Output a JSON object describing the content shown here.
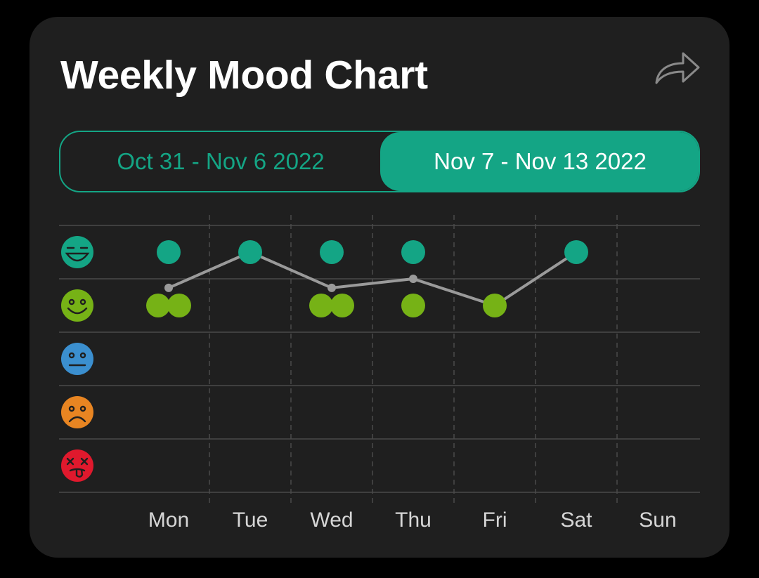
{
  "card": {
    "title": "Weekly Mood Chart"
  },
  "share_icon": "share-arrow-icon",
  "week_toggle": {
    "options": [
      "Oct 31 - Nov 6 2022",
      "Nov 7 - Nov 13 2022"
    ],
    "selected": "Nov 7 - Nov 13 2022"
  },
  "colors": {
    "background": "#000000",
    "card": "#1f1f1f",
    "accent": "#14a585",
    "mood_1": "#14a585",
    "mood_2": "#76b216",
    "mood_3": "#3b8fcf",
    "mood_4": "#e88522",
    "mood_5": "#e0192d",
    "average_line": "#9a9a9a",
    "grid": "#4a4a4a"
  },
  "chart_data": {
    "type": "scatter",
    "categories": [
      "Mon",
      "Tue",
      "Wed",
      "Thu",
      "Fri",
      "Sat",
      "Sun"
    ],
    "y_levels": [
      {
        "level": 5,
        "icon": "grinning-face-icon",
        "color": "#14a585"
      },
      {
        "level": 4,
        "icon": "smiling-face-icon",
        "color": "#76b216"
      },
      {
        "level": 3,
        "icon": "neutral-face-icon",
        "color": "#3b8fcf"
      },
      {
        "level": 2,
        "icon": "frowning-face-icon",
        "color": "#e88522"
      },
      {
        "level": 1,
        "icon": "dizzy-face-icon",
        "color": "#e0192d"
      }
    ],
    "ylim": [
      1,
      5
    ],
    "entries": [
      {
        "day": "Mon",
        "moods": [
          5,
          4,
          4
        ]
      },
      {
        "day": "Tue",
        "moods": [
          5
        ]
      },
      {
        "day": "Wed",
        "moods": [
          5,
          4,
          4
        ]
      },
      {
        "day": "Thu",
        "moods": [
          5,
          4
        ]
      },
      {
        "day": "Fri",
        "moods": [
          4
        ]
      },
      {
        "day": "Sat",
        "moods": [
          5
        ]
      },
      {
        "day": "Sun",
        "moods": []
      }
    ],
    "average_line": [
      {
        "day": "Mon",
        "value": 4.33
      },
      {
        "day": "Tue",
        "value": 5
      },
      {
        "day": "Wed",
        "value": 4.33
      },
      {
        "day": "Thu",
        "value": 4.5
      },
      {
        "day": "Fri",
        "value": 4
      },
      {
        "day": "Sat",
        "value": 5
      }
    ],
    "grid": true
  }
}
